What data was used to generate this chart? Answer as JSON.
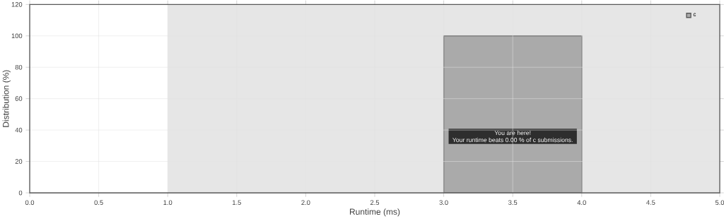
{
  "chart_data": {
    "type": "histogram",
    "xlabel": "Runtime (ms)",
    "ylabel": "Distribution (%)",
    "bins": [
      3,
      4
    ],
    "series": [
      {
        "name": "c",
        "color": "#aaaaaa",
        "values": [
          100
        ]
      }
    ],
    "xlim": [
      0,
      5
    ],
    "xticks": [
      {
        "value": 0,
        "label": "0.0"
      },
      {
        "value": 0.5,
        "label": "0.5"
      },
      {
        "value": 1,
        "label": "1.0"
      },
      {
        "value": 1.5,
        "label": "1.5"
      },
      {
        "value": 2,
        "label": "2.0"
      },
      {
        "value": 2.5,
        "label": "2.5"
      },
      {
        "value": 3,
        "label": "3.0"
      },
      {
        "value": 3.5,
        "label": "3.5"
      },
      {
        "value": 4,
        "label": "4.0"
      },
      {
        "value": 4.5,
        "label": "4.5"
      },
      {
        "value": 5,
        "label": "5.0"
      }
    ],
    "ylim": [
      0,
      120
    ],
    "yticks": [
      0,
      20,
      40,
      60,
      80,
      100,
      120
    ],
    "bands": [
      {
        "axis": "x",
        "from": 1,
        "to": 5,
        "color": "#e6e6e6"
      }
    ],
    "annotations": [
      "You are here!",
      "Your runtime beats 0.00 % of c submissions."
    ],
    "grid": true,
    "legend": "top right"
  }
}
